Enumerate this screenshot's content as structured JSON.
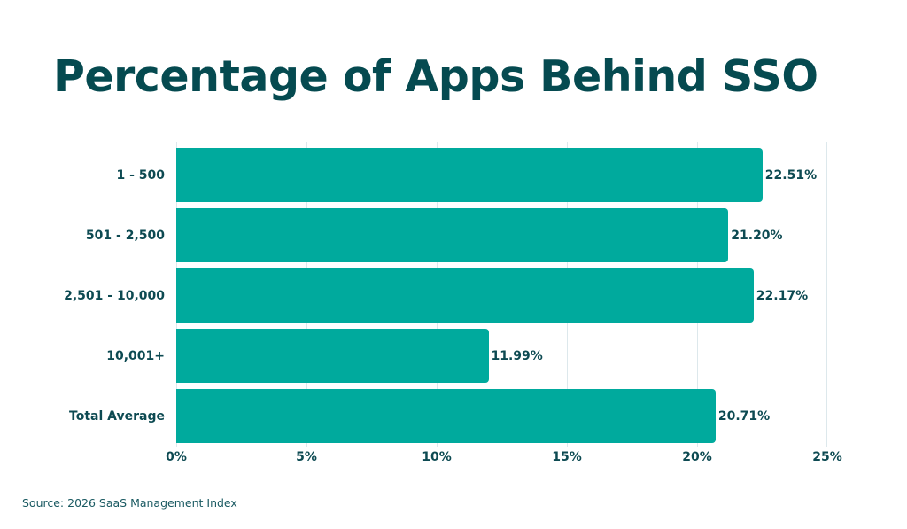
{
  "title": "Percentage of Apps Behind SSO",
  "source": "Source: 2026 SaaS Management Index",
  "colors": {
    "bar": "#00aa9d",
    "text": "#0d4a52",
    "title": "#054a50",
    "grid": "#dde8ec"
  },
  "chart_data": {
    "type": "bar",
    "orientation": "horizontal",
    "title": "Percentage of Apps Behind SSO",
    "categories": [
      "1 - 500",
      "501 - 2,500",
      "2,501 - 10,000",
      "10,001+",
      "Total Average"
    ],
    "values": [
      22.51,
      21.2,
      22.17,
      11.99,
      20.71
    ],
    "value_labels": [
      "22.51%",
      "21.20%",
      "22.17%",
      "11.99%",
      "20.71%"
    ],
    "xlabel": "",
    "ylabel": "",
    "xlim": [
      0,
      25
    ],
    "x_ticks": [
      "0%",
      "5%",
      "10%",
      "15%",
      "20%",
      "25%"
    ],
    "grid": "vertical",
    "legend": "none",
    "source": "Source: 2026 SaaS Management Index"
  }
}
